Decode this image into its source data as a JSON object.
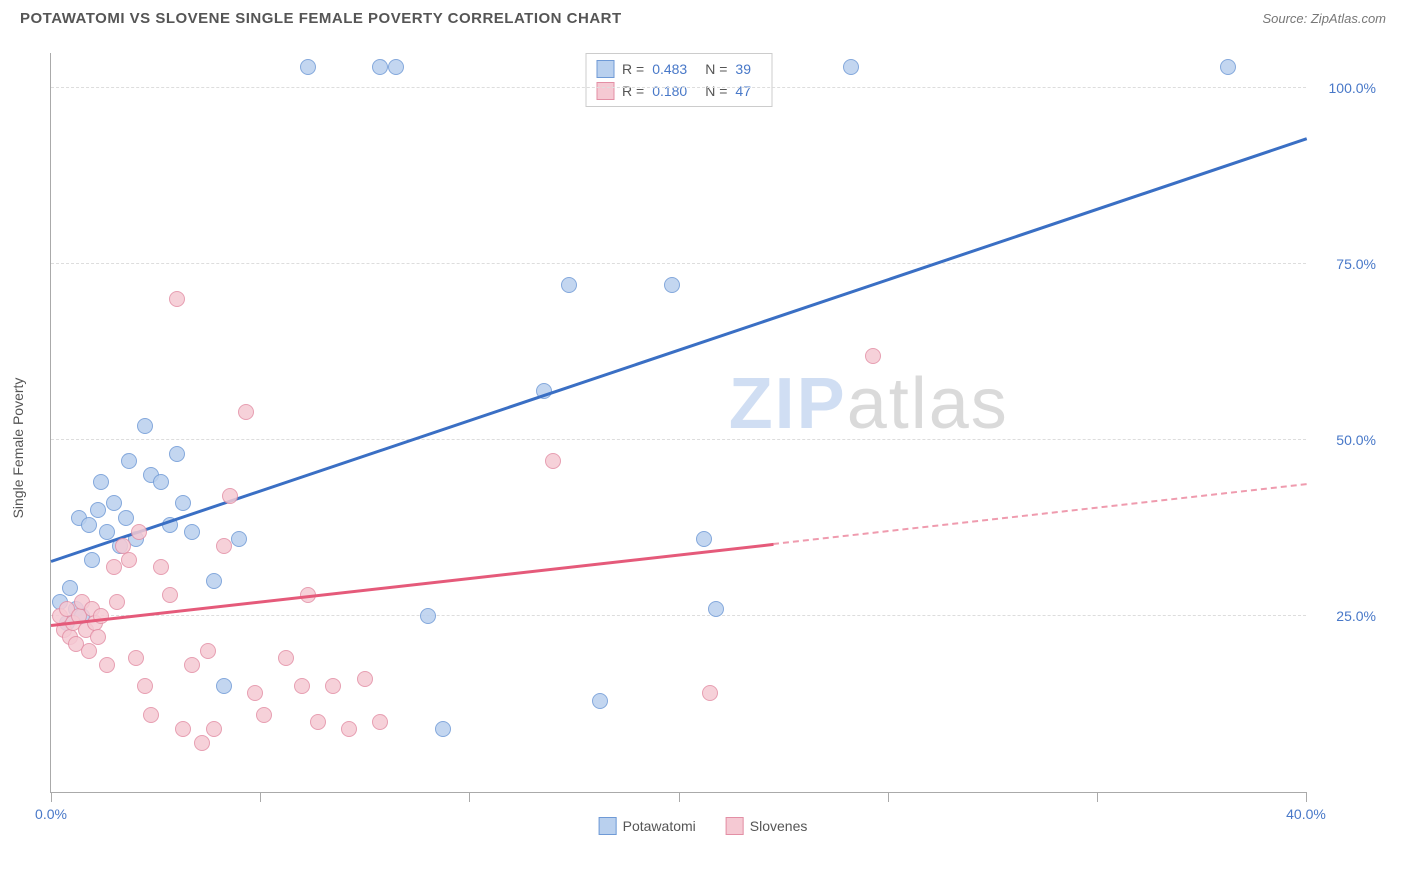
{
  "header": {
    "title": "POTAWATOMI VS SLOVENE SINGLE FEMALE POVERTY CORRELATION CHART",
    "source_label": "Source: ZipAtlas.com"
  },
  "chart": {
    "type": "scatter",
    "ylabel": "Single Female Poverty",
    "xlim": [
      0,
      40
    ],
    "ylim": [
      0,
      105
    ],
    "xticks": [
      0,
      6.67,
      13.33,
      20,
      26.67,
      33.33,
      40
    ],
    "xtick_labels": {
      "0": "0.0%",
      "40": "40.0%"
    },
    "yticks": [
      25,
      50,
      75,
      100
    ],
    "ytick_labels": [
      "25.0%",
      "50.0%",
      "75.0%",
      "100.0%"
    ],
    "background_color": "#ffffff",
    "grid_color": "#dddddd",
    "axis_color": "#aaaaaa",
    "tick_label_color": "#4878c8",
    "marker_size": 16,
    "series": [
      {
        "name": "Potawatomi",
        "fill": "#b9d0ee",
        "stroke": "#6f9ad6",
        "line_color": "#3a6fc4",
        "r": "0.483",
        "n": "39",
        "trend": {
          "x1": 0,
          "y1": 33,
          "x2": 40,
          "y2": 93,
          "solid_until_x": 40
        },
        "points": [
          [
            0.3,
            27
          ],
          [
            0.5,
            24
          ],
          [
            0.6,
            29
          ],
          [
            0.8,
            26
          ],
          [
            0.9,
            39
          ],
          [
            1.0,
            25
          ],
          [
            1.2,
            38
          ],
          [
            1.3,
            33
          ],
          [
            1.5,
            40
          ],
          [
            1.6,
            44
          ],
          [
            1.8,
            37
          ],
          [
            2.0,
            41
          ],
          [
            2.2,
            35
          ],
          [
            2.4,
            39
          ],
          [
            2.5,
            47
          ],
          [
            2.7,
            36
          ],
          [
            3.0,
            52
          ],
          [
            3.2,
            45
          ],
          [
            3.5,
            44
          ],
          [
            3.8,
            38
          ],
          [
            4.0,
            48
          ],
          [
            4.2,
            41
          ],
          [
            4.5,
            37
          ],
          [
            5.2,
            30
          ],
          [
            5.5,
            15
          ],
          [
            6.0,
            36
          ],
          [
            8.2,
            103
          ],
          [
            10.5,
            103
          ],
          [
            11.0,
            103
          ],
          [
            12.0,
            25
          ],
          [
            12.5,
            9
          ],
          [
            15.7,
            57
          ],
          [
            16.5,
            72
          ],
          [
            19.8,
            72
          ],
          [
            17.5,
            13
          ],
          [
            20.8,
            36
          ],
          [
            21.2,
            26
          ],
          [
            25.5,
            103
          ],
          [
            37.5,
            103
          ]
        ]
      },
      {
        "name": "Slovenes",
        "fill": "#f5c9d3",
        "stroke": "#e38fa5",
        "line_color": "#e55a7a",
        "r": "0.180",
        "n": "47",
        "trend": {
          "x1": 0,
          "y1": 24,
          "x2": 40,
          "y2": 44,
          "solid_until_x": 23
        },
        "points": [
          [
            0.3,
            25
          ],
          [
            0.4,
            23
          ],
          [
            0.5,
            26
          ],
          [
            0.6,
            22
          ],
          [
            0.7,
            24
          ],
          [
            0.8,
            21
          ],
          [
            0.9,
            25
          ],
          [
            1.0,
            27
          ],
          [
            1.1,
            23
          ],
          [
            1.2,
            20
          ],
          [
            1.3,
            26
          ],
          [
            1.4,
            24
          ],
          [
            1.5,
            22
          ],
          [
            1.6,
            25
          ],
          [
            1.8,
            18
          ],
          [
            2.0,
            32
          ],
          [
            2.1,
            27
          ],
          [
            2.3,
            35
          ],
          [
            2.5,
            33
          ],
          [
            2.7,
            19
          ],
          [
            2.8,
            37
          ],
          [
            3.0,
            15
          ],
          [
            3.2,
            11
          ],
          [
            3.5,
            32
          ],
          [
            3.8,
            28
          ],
          [
            4.0,
            70
          ],
          [
            4.2,
            9
          ],
          [
            4.5,
            18
          ],
          [
            4.8,
            7
          ],
          [
            5.0,
            20
          ],
          [
            5.2,
            9
          ],
          [
            5.5,
            35
          ],
          [
            5.7,
            42
          ],
          [
            6.2,
            54
          ],
          [
            6.5,
            14
          ],
          [
            6.8,
            11
          ],
          [
            7.5,
            19
          ],
          [
            8.0,
            15
          ],
          [
            8.2,
            28
          ],
          [
            8.5,
            10
          ],
          [
            9.0,
            15
          ],
          [
            9.5,
            9
          ],
          [
            10.0,
            16
          ],
          [
            10.5,
            10
          ],
          [
            16.0,
            47
          ],
          [
            21.0,
            14
          ],
          [
            26.2,
            62
          ]
        ]
      }
    ],
    "legend_bottom": [
      {
        "label": "Potawatomi",
        "fill": "#b9d0ee",
        "stroke": "#6f9ad6"
      },
      {
        "label": "Slovenes",
        "fill": "#f5c9d3",
        "stroke": "#e38fa5"
      }
    ],
    "watermark": {
      "part1": "ZIP",
      "part2": "atlas"
    }
  }
}
